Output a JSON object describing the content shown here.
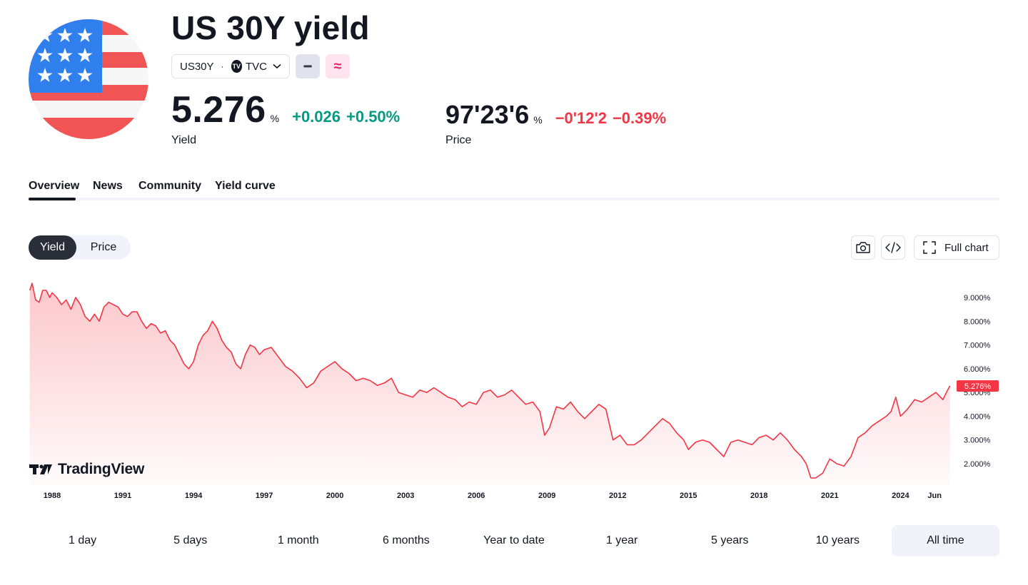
{
  "header": {
    "title": "US 30Y yield",
    "symbol": "US30Y",
    "separator": "·",
    "exchange": "TVC",
    "exchange_badge": "TV",
    "chip_minus": "━",
    "chip_approx": "≈"
  },
  "yield_quote": {
    "value": "5.276",
    "unit": "%",
    "change": "+0.026",
    "change_percent": "+0.50%",
    "label": "Yield"
  },
  "price_quote": {
    "value": "97'23'6",
    "unit": "%",
    "change": "−0'12'2",
    "change_percent": "−0.39%",
    "label": "Price"
  },
  "tabs": [
    {
      "label": "Overview",
      "active": true
    },
    {
      "label": "News",
      "active": false
    },
    {
      "label": "Community",
      "active": false
    },
    {
      "label": "Yield curve",
      "active": false
    }
  ],
  "toggle": {
    "options": [
      "Yield",
      "Price"
    ],
    "selected": "Yield"
  },
  "toolbar": {
    "full_chart_label": "Full chart",
    "icons": [
      "camera-icon",
      "embed-code-icon",
      "fullscreen-icon"
    ]
  },
  "watermark": "TradingView",
  "colors": {
    "line": "#f23645",
    "area_fill": "#f23645",
    "positive": "#089981",
    "negative": "#f23645",
    "active_toggle": "#2a2e39",
    "last_value_badge": "#f23645"
  },
  "chart_data": {
    "type": "area",
    "title": "",
    "xlabel": "",
    "ylabel": "",
    "x_axis_labels": [
      "1988",
      "1991",
      "1994",
      "1997",
      "2000",
      "2003",
      "2006",
      "2009",
      "2012",
      "2015",
      "2018",
      "2021",
      "2024",
      "Jun"
    ],
    "y_axis_labels": [
      "9.000%",
      "8.000%",
      "7.000%",
      "6.000%",
      "5.000%",
      "4.000%",
      "3.000%",
      "2.000%"
    ],
    "ylim": [
      1.2,
      9.9
    ],
    "xlim": [
      1987.0,
      2026.2
    ],
    "grid": false,
    "last_value_label": "5.276%",
    "series": [
      {
        "x": [
          1987.05,
          1987.15,
          1987.3,
          1987.45,
          1987.6,
          1987.75,
          1987.9,
          1988.0,
          1988.2,
          1988.4,
          1988.6,
          1988.8,
          1989.0,
          1989.2,
          1989.4,
          1989.6,
          1989.8,
          1990.0,
          1990.2,
          1990.4,
          1990.6,
          1990.8,
          1991.0,
          1991.2,
          1991.4,
          1991.6,
          1991.8,
          1992.0,
          1992.2,
          1992.4,
          1992.6,
          1992.8,
          1993.0,
          1993.2,
          1993.4,
          1993.6,
          1993.8,
          1994.0,
          1994.2,
          1994.4,
          1994.6,
          1994.8,
          1995.0,
          1995.2,
          1995.4,
          1995.6,
          1995.8,
          1996.0,
          1996.2,
          1996.4,
          1996.6,
          1996.8,
          1997.0,
          1997.3,
          1997.6,
          1997.9,
          1998.2,
          1998.5,
          1998.8,
          1999.1,
          1999.4,
          1999.7,
          2000.0,
          2000.3,
          2000.6,
          2000.9,
          2001.2,
          2001.5,
          2001.8,
          2002.1,
          2002.4,
          2002.7,
          2003.0,
          2003.3,
          2003.6,
          2003.9,
          2004.2,
          2004.5,
          2004.8,
          2005.1,
          2005.4,
          2005.7,
          2006.0,
          2006.3,
          2006.6,
          2006.9,
          2007.2,
          2007.5,
          2007.8,
          2008.1,
          2008.4,
          2008.7,
          2008.9,
          2009.1,
          2009.4,
          2009.7,
          2010.0,
          2010.3,
          2010.6,
          2010.9,
          2011.2,
          2011.5,
          2011.8,
          2012.1,
          2012.4,
          2012.7,
          2013.0,
          2013.3,
          2013.6,
          2013.9,
          2014.2,
          2014.5,
          2014.8,
          2015.0,
          2015.3,
          2015.6,
          2015.9,
          2016.2,
          2016.5,
          2016.8,
          2017.1,
          2017.4,
          2017.7,
          2018.0,
          2018.3,
          2018.6,
          2018.9,
          2019.2,
          2019.5,
          2019.8,
          2020.0,
          2020.2,
          2020.4,
          2020.7,
          2021.0,
          2021.3,
          2021.6,
          2021.9,
          2022.2,
          2022.5,
          2022.8,
          2023.1,
          2023.4,
          2023.6,
          2023.8,
          2024.0,
          2024.3,
          2024.6,
          2024.9,
          2025.2,
          2025.5,
          2025.8,
          2026.0,
          2026.1
        ],
        "y": [
          9.3,
          9.6,
          8.9,
          8.8,
          9.3,
          9.3,
          9.0,
          9.2,
          9.0,
          8.7,
          8.9,
          8.5,
          9.0,
          8.7,
          8.2,
          8.0,
          8.3,
          8.0,
          8.6,
          8.8,
          8.7,
          8.6,
          8.3,
          8.2,
          8.4,
          8.4,
          8.0,
          7.7,
          7.9,
          7.8,
          7.5,
          7.6,
          7.2,
          7.0,
          6.6,
          6.2,
          6.0,
          6.3,
          7.0,
          7.4,
          7.6,
          8.0,
          7.7,
          7.2,
          6.9,
          6.7,
          6.2,
          6.0,
          6.6,
          7.0,
          6.9,
          6.6,
          6.8,
          6.9,
          6.5,
          6.1,
          5.9,
          5.6,
          5.2,
          5.4,
          5.9,
          6.1,
          6.3,
          6.0,
          5.8,
          5.5,
          5.6,
          5.5,
          5.3,
          5.4,
          5.6,
          5.0,
          4.9,
          4.8,
          5.1,
          5.0,
          5.2,
          5.0,
          4.8,
          4.7,
          4.4,
          4.6,
          4.5,
          5.0,
          5.1,
          4.8,
          4.9,
          5.1,
          4.8,
          4.5,
          4.6,
          4.2,
          3.2,
          3.5,
          4.4,
          4.3,
          4.6,
          4.2,
          3.9,
          4.2,
          4.5,
          4.3,
          3.0,
          3.2,
          2.8,
          2.8,
          3.0,
          3.3,
          3.6,
          3.9,
          3.7,
          3.3,
          3.0,
          2.6,
          2.9,
          3.0,
          2.9,
          2.6,
          2.3,
          2.9,
          3.0,
          2.9,
          2.8,
          3.1,
          3.2,
          3.0,
          3.3,
          3.0,
          2.6,
          2.3,
          2.0,
          1.4,
          1.4,
          1.6,
          2.2,
          2.0,
          1.9,
          2.3,
          3.1,
          3.3,
          3.6,
          3.8,
          4.0,
          4.2,
          4.8,
          4.0,
          4.3,
          4.7,
          4.6,
          4.8,
          5.0,
          4.7,
          5.1,
          5.276
        ]
      }
    ]
  },
  "time_ranges": [
    {
      "label": "1 day",
      "active": false
    },
    {
      "label": "5 days",
      "active": false
    },
    {
      "label": "1 month",
      "active": false
    },
    {
      "label": "6 months",
      "active": false
    },
    {
      "label": "Year to date",
      "active": false
    },
    {
      "label": "1 year",
      "active": false
    },
    {
      "label": "5 years",
      "active": false
    },
    {
      "label": "10 years",
      "active": false
    },
    {
      "label": "All time",
      "active": true
    }
  ]
}
